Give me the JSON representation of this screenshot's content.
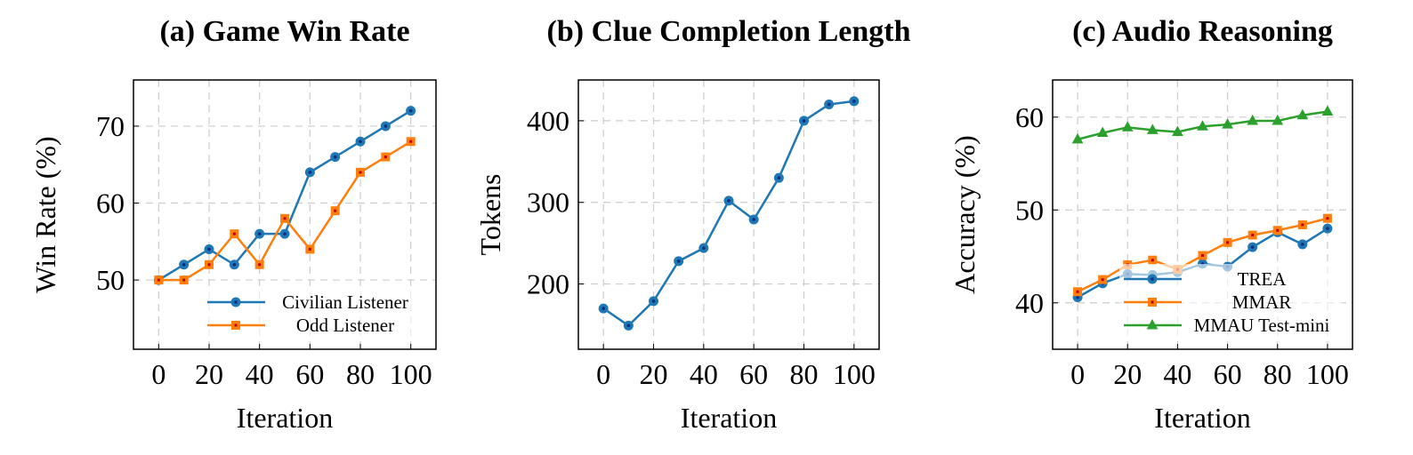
{
  "chart_data": [
    {
      "type": "line",
      "title": "(a) Game Win Rate",
      "x_label": "Iteration",
      "y_label": "Win Rate (%)",
      "x": [
        0,
        10,
        20,
        30,
        40,
        50,
        60,
        70,
        80,
        90,
        100
      ],
      "series": [
        {
          "name": "Civilian Listener",
          "color": "#1f77b4",
          "marker": "circle",
          "values": [
            50,
            52,
            54,
            52,
            56,
            56,
            64,
            66,
            68,
            70,
            72
          ]
        },
        {
          "name": "Odd Listener",
          "color": "#ff7f0e",
          "marker": "square",
          "values": [
            50,
            50,
            52,
            56,
            52,
            58,
            54,
            59,
            64,
            66,
            68
          ]
        }
      ],
      "xlim": [
        -10,
        110
      ],
      "ylim": [
        41,
        76
      ],
      "xticks": [
        0,
        20,
        40,
        60,
        80,
        100
      ],
      "yticks": [
        50,
        60,
        70
      ],
      "grid": true,
      "legend": "bottom-right"
    },
    {
      "type": "line",
      "title": "(b) Clue Completion Length",
      "x_label": "Iteration",
      "y_label": "Tokens",
      "x": [
        0,
        10,
        20,
        30,
        40,
        50,
        60,
        70,
        80,
        90,
        100
      ],
      "series": [
        {
          "color": "#1f77b4",
          "marker": "circle",
          "values": [
            170,
            149,
            179,
            228,
            244,
            302,
            279,
            330,
            400,
            420,
            424
          ]
        }
      ],
      "xlim": [
        -10,
        110
      ],
      "ylim": [
        120,
        450
      ],
      "xticks": [
        0,
        20,
        40,
        60,
        80,
        100
      ],
      "yticks": [
        200,
        300,
        400
      ],
      "grid": true
    },
    {
      "type": "line",
      "title": "(c) Audio Reasoning",
      "x_label": "Iteration",
      "y_label": "Accuracy (%)",
      "x": [
        0,
        10,
        20,
        30,
        40,
        50,
        60,
        70,
        80,
        90,
        100
      ],
      "series": [
        {
          "name": "TREA",
          "color": "#1f77b4",
          "marker": "circle",
          "values": [
            40.6,
            42.1,
            43.1,
            43.0,
            43.3,
            44.2,
            43.9,
            46.0,
            47.6,
            46.3,
            48.0
          ]
        },
        {
          "name": "MMAR",
          "color": "#ff7f0e",
          "marker": "square",
          "values": [
            41.2,
            42.5,
            44.1,
            44.6,
            43.6,
            45.1,
            46.5,
            47.3,
            47.8,
            48.4,
            49.1
          ]
        },
        {
          "name": "MMAU Test-mini",
          "color": "#2ca02c",
          "marker": "triangle",
          "values": [
            57.6,
            58.3,
            58.9,
            58.6,
            58.4,
            59.0,
            59.2,
            59.6,
            59.6,
            60.2,
            60.6
          ]
        }
      ],
      "xlim": [
        -10,
        110
      ],
      "ylim": [
        35,
        64
      ],
      "xticks": [
        0,
        20,
        40,
        60,
        80,
        100
      ],
      "yticks": [
        40,
        50,
        60
      ],
      "grid": true,
      "legend": "bottom-right"
    }
  ]
}
